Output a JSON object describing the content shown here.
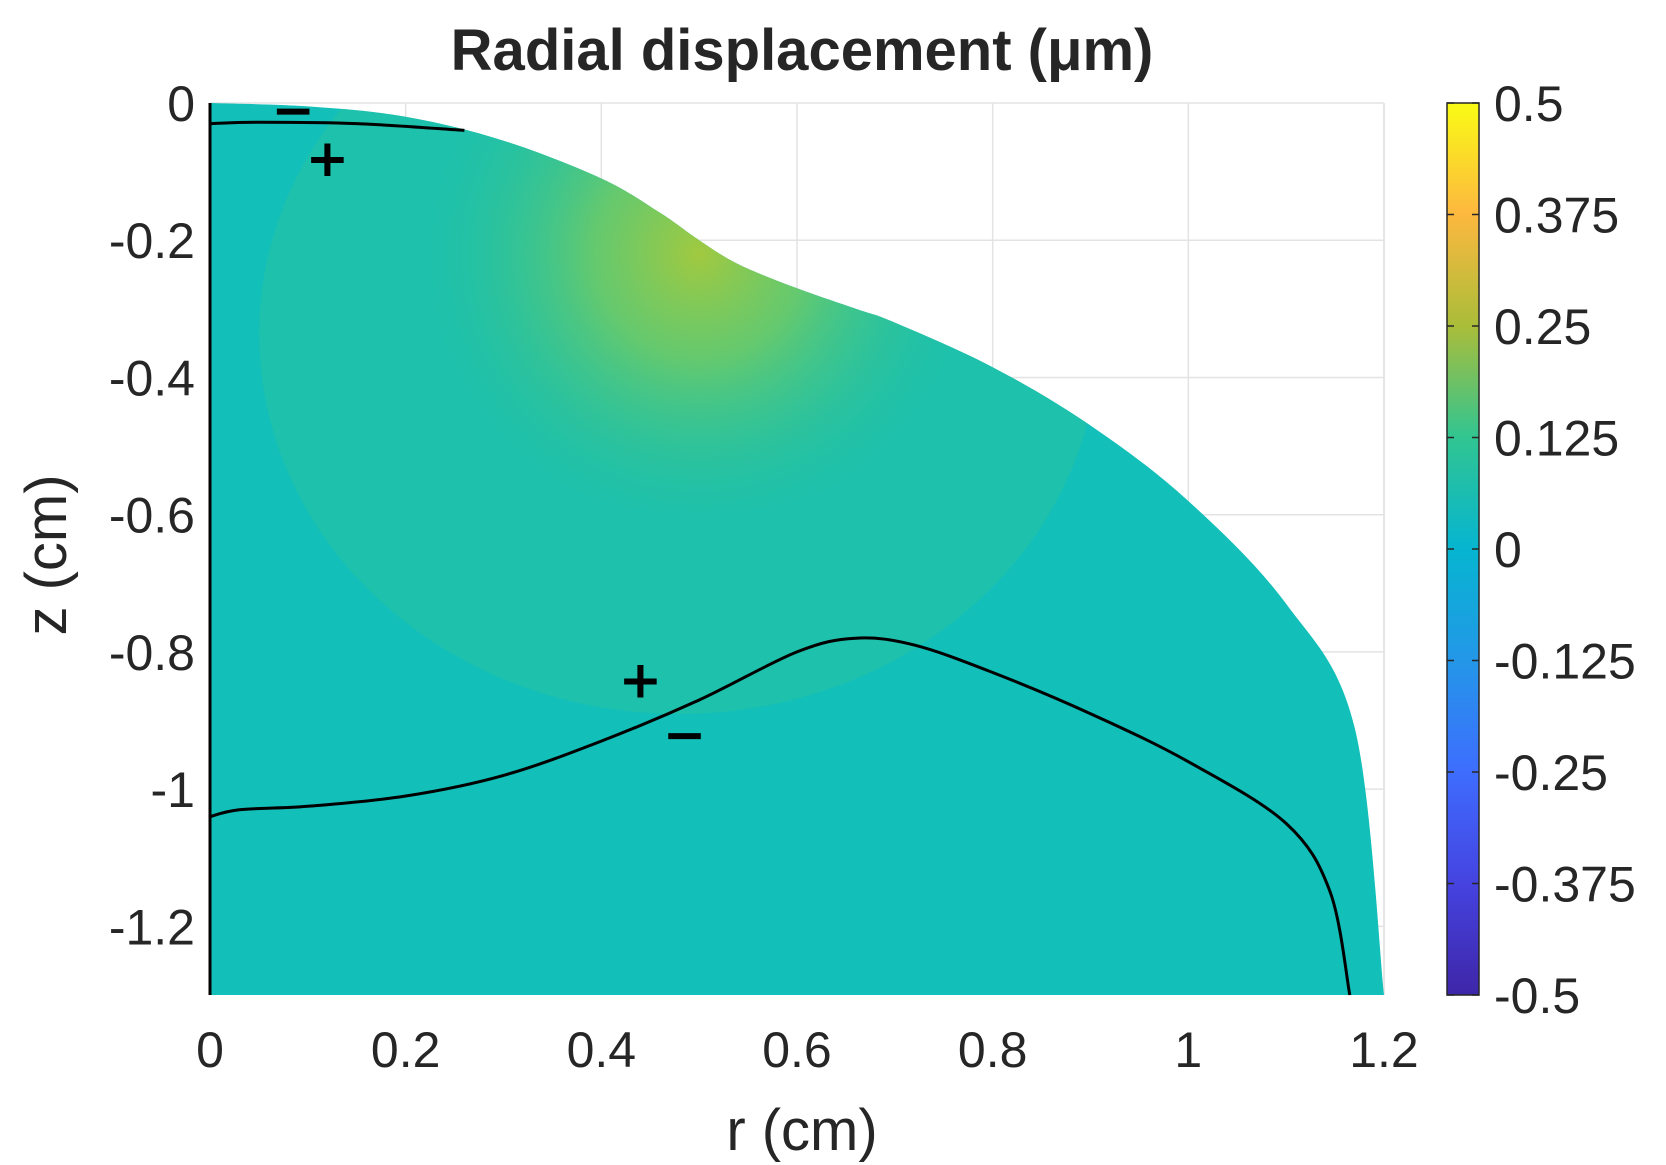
{
  "chart_data": {
    "type": "heatmap",
    "title": "Radial  displacement  (μm)",
    "xlabel": "r (cm)",
    "ylabel": "z (cm)",
    "xlim": [
      0,
      1.2
    ],
    "ylim": [
      -1.3,
      0
    ],
    "x_ticks": [
      0,
      0.2,
      0.4,
      0.6,
      0.8,
      1,
      1.2
    ],
    "x_tick_labels": [
      "0",
      "0.2",
      "0.4",
      "0.6",
      "0.8",
      "1",
      "1.2"
    ],
    "y_ticks": [
      0,
      -0.2,
      -0.4,
      -0.6,
      -0.8,
      -1,
      -1.2
    ],
    "y_tick_labels": [
      "0",
      "-0.2",
      "-0.4",
      "-0.6",
      "-0.8",
      "-1",
      "-1.2"
    ],
    "grid": true,
    "colorbar": {
      "colormap": "parula",
      "clim": [
        -0.5,
        0.5
      ],
      "ticks": [
        0.5,
        0.375,
        0.25,
        0.125,
        0,
        -0.125,
        -0.25,
        -0.375,
        -0.5
      ],
      "tick_labels": [
        "0.5",
        "0.375",
        "0.25",
        "0.125",
        "0",
        "-0.125",
        "-0.25",
        "-0.375",
        "-0.5"
      ]
    },
    "domain_boundary": [
      {
        "r": 0,
        "z": 0
      },
      {
        "r": 0.1,
        "z": -0.005
      },
      {
        "r": 0.2,
        "z": -0.02
      },
      {
        "r": 0.3,
        "z": -0.055
      },
      {
        "r": 0.4,
        "z": -0.11
      },
      {
        "r": 0.46,
        "z": -0.16
      },
      {
        "r": 0.5,
        "z": -0.2
      },
      {
        "r": 0.54,
        "z": -0.235
      },
      {
        "r": 0.6,
        "z": -0.27
      },
      {
        "r": 0.66,
        "z": -0.3
      },
      {
        "r": 0.7,
        "z": -0.32
      },
      {
        "r": 0.8,
        "z": -0.385
      },
      {
        "r": 0.9,
        "z": -0.47
      },
      {
        "r": 1.0,
        "z": -0.58
      },
      {
        "r": 1.1,
        "z": -0.73
      },
      {
        "r": 1.17,
        "z": -0.91
      },
      {
        "r": 1.2,
        "z": -1.3
      }
    ],
    "peak": {
      "r": 0.5,
      "z": -0.22,
      "value": 0.22
    },
    "zero_contours": [
      {
        "points": [
          {
            "r": 0,
            "z": -0.03
          },
          {
            "r": 0.05,
            "z": -0.028
          },
          {
            "r": 0.15,
            "z": -0.03
          },
          {
            "r": 0.26,
            "z": -0.04
          }
        ]
      },
      {
        "points": [
          {
            "r": 0,
            "z": -1.04
          },
          {
            "r": 0.03,
            "z": -1.03
          },
          {
            "r": 0.1,
            "z": -1.025
          },
          {
            "r": 0.2,
            "z": -1.01
          },
          {
            "r": 0.3,
            "z": -0.98
          },
          {
            "r": 0.4,
            "z": -0.93
          },
          {
            "r": 0.5,
            "z": -0.87
          },
          {
            "r": 0.6,
            "z": -0.8
          },
          {
            "r": 0.66,
            "z": -0.78
          },
          {
            "r": 0.72,
            "z": -0.79
          },
          {
            "r": 0.8,
            "z": -0.83
          },
          {
            "r": 0.9,
            "z": -0.89
          },
          {
            "r": 1.0,
            "z": -0.96
          },
          {
            "r": 1.1,
            "z": -1.05
          },
          {
            "r": 1.145,
            "z": -1.15
          },
          {
            "r": 1.165,
            "z": -1.3
          }
        ]
      }
    ],
    "annotations": [
      {
        "text": "−",
        "r": 0.085,
        "z": -0.01
      },
      {
        "text": "+",
        "r": 0.12,
        "z": -0.08
      },
      {
        "text": "+",
        "r": 0.44,
        "z": -0.84
      },
      {
        "text": "−",
        "r": 0.485,
        "z": -0.92
      }
    ]
  }
}
